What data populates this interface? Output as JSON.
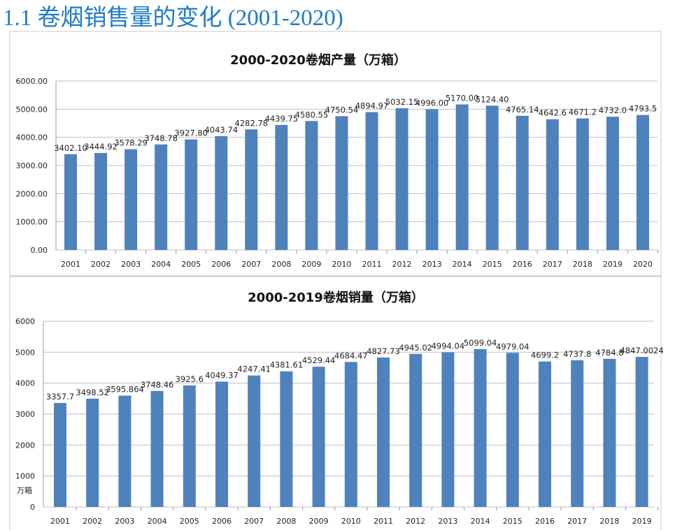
{
  "slide": {
    "heading": "1.1 卷烟销售量的变化 (2001-2020)"
  },
  "chart_data": [
    {
      "type": "bar",
      "title": "2000-2020卷烟产量（万箱）",
      "ylabel": "",
      "ylim": [
        0,
        6000
      ],
      "yticks": [
        "0.00",
        "1000.00",
        "2000.00",
        "3000.00",
        "4000.00",
        "5000.00",
        "6000.00"
      ],
      "grid": true,
      "color": "#4f81bd",
      "categories": [
        "2001",
        "2002",
        "2003",
        "2004",
        "2005",
        "2006",
        "2007",
        "2008",
        "2009",
        "2010",
        "2011",
        "2012",
        "2013",
        "2014",
        "2015",
        "2016",
        "2017",
        "2018",
        "2019",
        "2020"
      ],
      "values": [
        3402.1,
        3444.92,
        3578.29,
        3748.78,
        3927.8,
        4043.74,
        4282.78,
        4439.75,
        4580.55,
        4750.54,
        4894.97,
        5032.15,
        4996.0,
        5170.0,
        5124.4,
        4765.14,
        4642.6,
        4671.2,
        4732.0,
        4793.5
      ],
      "labels": [
        "3402.10",
        "3444.92",
        "3578.29",
        "3748.78",
        "3927.80",
        "4043.74",
        "4282.78",
        "4439.75",
        "4580.55",
        "4750.54",
        "4894.97",
        "5032.15",
        "4996.00",
        "5170.00",
        "5124.40",
        "4765.14",
        "4642.6",
        "4671.2",
        "4732.0",
        "4793.5"
      ]
    },
    {
      "type": "bar",
      "title": "2000-2019卷烟销量（万箱）",
      "ylabel": "万箱",
      "ylim": [
        0,
        6000
      ],
      "yticks": [
        "0",
        "1000",
        "2000",
        "3000",
        "4000",
        "5000",
        "6000"
      ],
      "grid": true,
      "color": "#4f81bd",
      "categories": [
        "2001",
        "2002",
        "2003",
        "2004",
        "2005",
        "2006",
        "2007",
        "2008",
        "2009",
        "2010",
        "2011",
        "2012",
        "2013",
        "2014",
        "2015",
        "2016",
        "2017",
        "2018",
        "2019"
      ],
      "values": [
        3357.7,
        3498.52,
        3595.864,
        3748.46,
        3925.6,
        4049.37,
        4247.41,
        4381.61,
        4529.44,
        4684.47,
        4827.73,
        4945.02,
        4994.04,
        5099.04,
        4979.04,
        4699.2,
        4737.8,
        4784.8,
        4847.0024
      ],
      "labels": [
        "3357.7",
        "3498.52",
        "3595.864",
        "3748.46",
        "3925.6",
        "4049.37",
        "4247.41",
        "4381.61",
        "4529.44",
        "4684.47",
        "4827.73",
        "4945.02",
        "4994.04",
        "5099.04",
        "4979.04",
        "4699.2",
        "4737.8",
        "4784.8",
        "4847.0024"
      ]
    }
  ]
}
